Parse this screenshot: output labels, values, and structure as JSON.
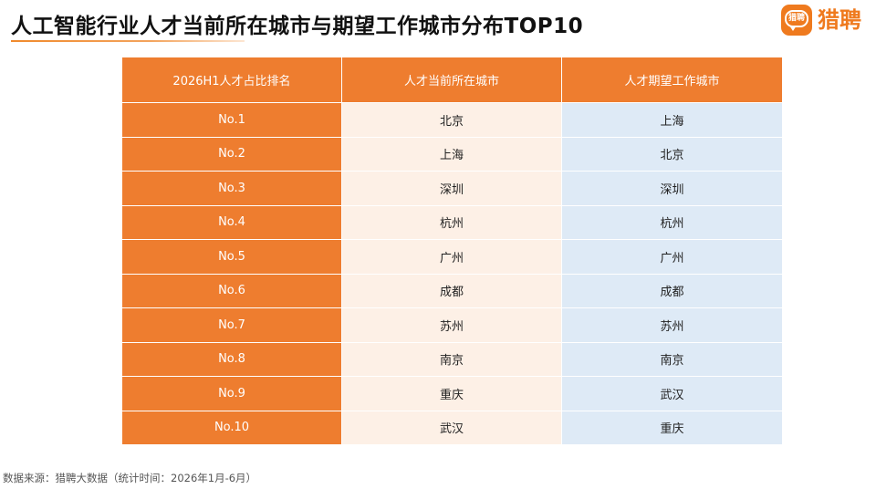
{
  "title": "人工智能行业人才当前所在城市与期望工作城市分布TOP10",
  "logo": {
    "badge_text": "猎聘",
    "text": "猎聘"
  },
  "table": {
    "headers": [
      "2026H1人才占比排名",
      "人才当前所在城市",
      "人才期望工作城市"
    ],
    "rows": [
      {
        "rank": "No.1",
        "current": "北京",
        "expected": "上海"
      },
      {
        "rank": "No.2",
        "current": "上海",
        "expected": "北京"
      },
      {
        "rank": "No.3",
        "current": "深圳",
        "expected": "深圳"
      },
      {
        "rank": "No.4",
        "current": "杭州",
        "expected": "杭州"
      },
      {
        "rank": "No.5",
        "current": "广州",
        "expected": "广州"
      },
      {
        "rank": "No.6",
        "current": "成都",
        "expected": "成都"
      },
      {
        "rank": "No.7",
        "current": "苏州",
        "expected": "苏州"
      },
      {
        "rank": "No.8",
        "current": "南京",
        "expected": "南京"
      },
      {
        "rank": "No.9",
        "current": "重庆",
        "expected": "武汉"
      },
      {
        "rank": "No.10",
        "current": "武汉",
        "expected": "重庆"
      }
    ]
  },
  "source": "数据来源：猎聘大数据（统计时间：2026年1月-6月）",
  "colors": {
    "accent": "#ee7d2f",
    "current_bg": "#fdf0e6",
    "expected_bg": "#deeaf6"
  }
}
